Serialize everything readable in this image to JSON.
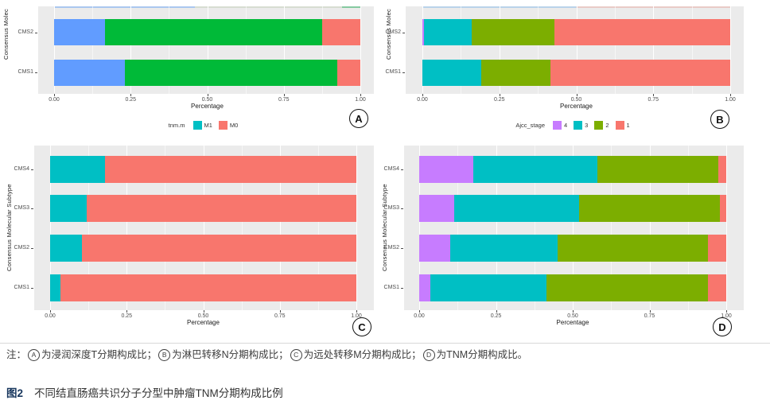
{
  "figure": {
    "note": {
      "prefix": "注：",
      "items": [
        {
          "badge": "A",
          "text": "为浸润深度T分期构成比；"
        },
        {
          "badge": "B",
          "text": "为淋巴转移N分期构成比；"
        },
        {
          "badge": "C",
          "text": "为远处转移M分期构成比；"
        },
        {
          "badge": "D",
          "text": "为TNM分期构成比。"
        }
      ]
    },
    "caption_label": "图2",
    "caption_text": "不同结直肠癌共识分子分型中肿瘤TNM分期构成比例"
  },
  "palette": {
    "red": "#F8766D",
    "green": "#00BA38",
    "blue": "#619CFF",
    "teal": "#00BFC4",
    "olive": "#7CAE00",
    "purple": "#C77CFF",
    "panel_bg": "#EBEBEB",
    "grid_major": "#FFFFFF",
    "axis_text": "#4D4D4D"
  },
  "chart_data": [
    {
      "id": "A",
      "badge": "A",
      "type": "bar",
      "orientation": "horizontal",
      "stacked": true,
      "xlabel": "Percentage",
      "ylabel": "Consensus Molec",
      "xlim": [
        0,
        1
      ],
      "xticks": [
        "0.00",
        "0.25",
        "0.50",
        "0.75",
        "1.00"
      ],
      "grid": true,
      "categories": [
        "CMS2",
        "CMS1"
      ],
      "legend": null,
      "series": [
        {
          "name": "",
          "color": "#619CFF",
          "values": [
            0.165,
            0.23
          ]
        },
        {
          "name": "",
          "color": "#00BA38",
          "values": [
            0.71,
            0.695
          ]
        },
        {
          "name": "",
          "color": "#F8766D",
          "values": [
            0.125,
            0.075
          ]
        }
      ]
    },
    {
      "id": "B",
      "badge": "B",
      "type": "bar",
      "orientation": "horizontal",
      "stacked": true,
      "xlabel": "Percentage",
      "ylabel": "Consensus Molec",
      "xlim": [
        0,
        1
      ],
      "xticks": [
        "0.00",
        "0.25",
        "0.50",
        "0.75",
        "1.00"
      ],
      "grid": true,
      "categories": [
        "CMS2",
        "CMS1"
      ],
      "legend": null,
      "series": [
        {
          "name": "",
          "color": "#C77CFF",
          "values": [
            0.005,
            0
          ]
        },
        {
          "name": "",
          "color": "#00BFC4",
          "values": [
            0.155,
            0.19
          ]
        },
        {
          "name": "",
          "color": "#7CAE00",
          "values": [
            0.27,
            0.225
          ]
        },
        {
          "name": "",
          "color": "#F8766D",
          "values": [
            0.57,
            0.585
          ]
        }
      ]
    },
    {
      "id": "C",
      "badge": "C",
      "type": "bar",
      "orientation": "horizontal",
      "stacked": true,
      "xlabel": "Percentage",
      "ylabel": "Consensus Molecular Subtype",
      "xlim": [
        0,
        1
      ],
      "xticks": [
        "0.00",
        "0.25",
        "0.50",
        "0.75",
        "1.00"
      ],
      "grid": true,
      "categories": [
        "CMS4",
        "CMS3",
        "CMS2",
        "CMS1"
      ],
      "legend": {
        "title": "tnm.m",
        "position": "top",
        "entries": [
          {
            "label": "M1",
            "color": "#00BFC4"
          },
          {
            "label": "M0",
            "color": "#F8766D"
          }
        ]
      },
      "series": [
        {
          "name": "M1",
          "color": "#00BFC4",
          "values": [
            0.18,
            0.12,
            0.105,
            0.035
          ]
        },
        {
          "name": "M0",
          "color": "#F8766D",
          "values": [
            0.82,
            0.88,
            0.895,
            0.965
          ]
        }
      ]
    },
    {
      "id": "D",
      "badge": "D",
      "type": "bar",
      "orientation": "horizontal",
      "stacked": true,
      "xlabel": "Percentage",
      "ylabel": "Consensus Molecular Subtype",
      "xlim": [
        0,
        1
      ],
      "xticks": [
        "0.00",
        "0.25",
        "0.50",
        "0.75",
        "1.00"
      ],
      "grid": true,
      "categories": [
        "CMS4",
        "CMS3",
        "CMS2",
        "CMS1"
      ],
      "legend": {
        "title": "Ajcc_stage",
        "position": "top",
        "entries": [
          {
            "label": "4",
            "color": "#C77CFF"
          },
          {
            "label": "3",
            "color": "#00BFC4"
          },
          {
            "label": "2",
            "color": "#7CAE00"
          },
          {
            "label": "1",
            "color": "#F8766D"
          }
        ]
      },
      "series": [
        {
          "name": "4",
          "color": "#C77CFF",
          "values": [
            0.175,
            0.115,
            0.1,
            0.035
          ]
        },
        {
          "name": "3",
          "color": "#00BFC4",
          "values": [
            0.405,
            0.405,
            0.35,
            0.38
          ]
        },
        {
          "name": "2",
          "color": "#7CAE00",
          "values": [
            0.395,
            0.46,
            0.49,
            0.525
          ]
        },
        {
          "name": "1",
          "color": "#F8766D",
          "values": [
            0.025,
            0.02,
            0.06,
            0.06
          ]
        }
      ]
    }
  ]
}
